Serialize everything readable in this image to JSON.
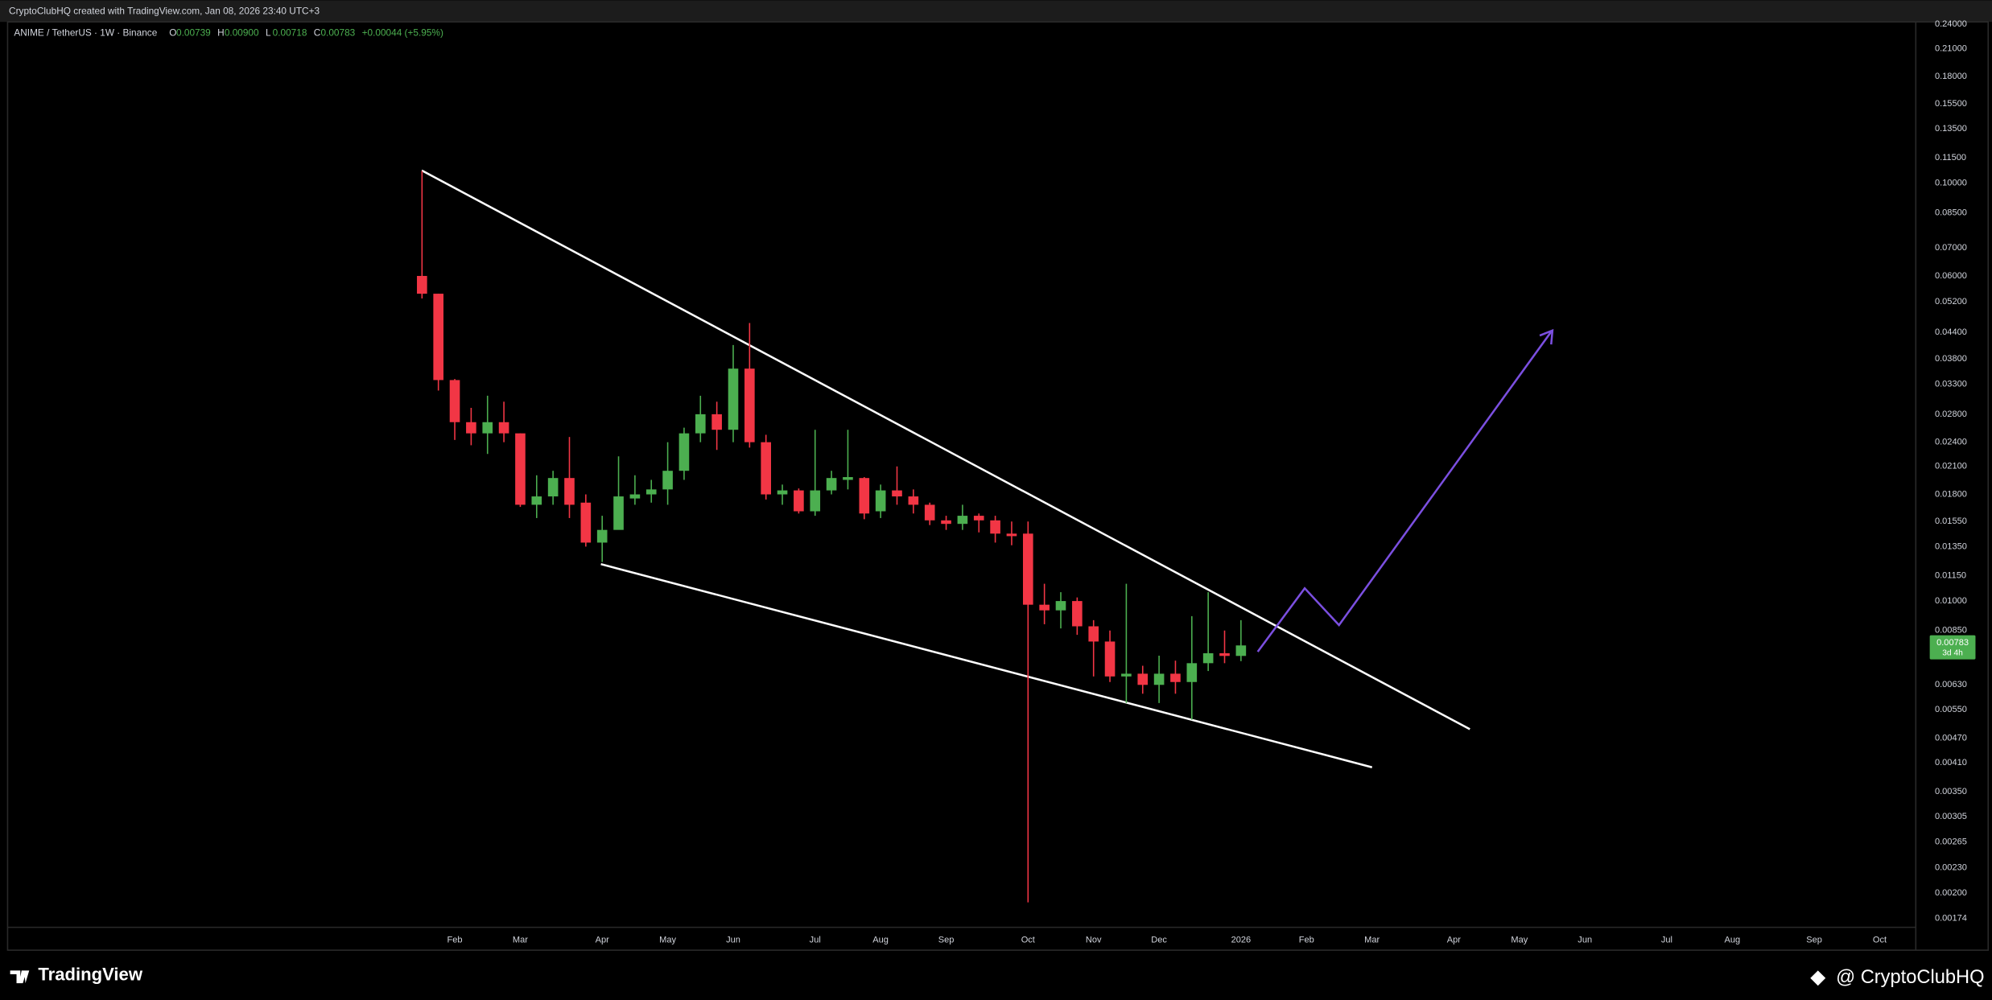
{
  "header": {
    "credit": "CryptoClubHQ created with TradingView.com, Jan 08, 2026 23:40 UTC+3"
  },
  "chart_data": {
    "type": "candlestick",
    "title": "ANIME / TetherUS · 1W · Binance",
    "legend": [
      {
        "key": "O",
        "text": "0.00739"
      },
      {
        "key": "H",
        "text": "0.00900"
      },
      {
        "key": "L",
        "text": "0.00718"
      },
      {
        "key": "C",
        "text": "0.00783"
      }
    ],
    "change": "+0.00044 (+5.95%)",
    "countdown": "3d 4h",
    "log_scale": true,
    "grid": false,
    "up_color": "#4caf50",
    "down_color": "#f23645",
    "x": [
      0,
      1,
      2,
      3,
      4,
      5,
      6,
      7,
      8,
      9,
      10,
      11,
      12,
      13,
      14,
      15,
      16,
      17,
      18,
      19,
      20,
      21,
      22,
      23,
      24,
      25,
      26,
      27,
      28,
      29,
      30,
      31,
      32,
      33,
      34,
      35,
      36,
      37,
      38,
      39,
      40,
      41,
      42,
      43,
      44,
      45,
      46,
      47,
      48,
      49,
      50
    ],
    "open": [
      0.06,
      0.0544,
      0.0338,
      0.0268,
      0.0252,
      0.0268,
      0.0252,
      0.017,
      0.0178,
      0.0197,
      0.0172,
      0.0138,
      0.0148,
      0.0176,
      0.018,
      0.0185,
      0.0205,
      0.0252,
      0.028,
      0.0257,
      0.036,
      0.024,
      0.018,
      0.0184,
      0.0164,
      0.0184,
      0.0195,
      0.0197,
      0.0164,
      0.0184,
      0.0178,
      0.017,
      0.0156,
      0.0153,
      0.016,
      0.0156,
      0.0145,
      0.0145,
      0.0098,
      0.0095,
      0.01,
      0.0087,
      0.008,
      0.0066,
      0.0067,
      0.0063,
      0.0067,
      0.0064,
      0.0071,
      0.0075,
      0.00739
    ],
    "high": [
      0.107,
      0.0544,
      0.034,
      0.029,
      0.031,
      0.03,
      0.0252,
      0.02,
      0.0205,
      0.0247,
      0.018,
      0.016,
      0.0222,
      0.02,
      0.0195,
      0.024,
      0.026,
      0.031,
      0.03,
      0.041,
      0.0463,
      0.025,
      0.019,
      0.0186,
      0.0257,
      0.0205,
      0.0257,
      0.0198,
      0.019,
      0.021,
      0.0185,
      0.0172,
      0.016,
      0.017,
      0.0162,
      0.016,
      0.0155,
      0.0155,
      0.011,
      0.0105,
      0.0102,
      0.009,
      0.0085,
      0.011,
      0.007,
      0.0074,
      0.0072,
      0.0092,
      0.0105,
      0.0085,
      0.009
    ],
    "low": [
      0.053,
      0.0319,
      0.0243,
      0.0236,
      0.0225,
      0.024,
      0.0168,
      0.0158,
      0.017,
      0.0158,
      0.0135,
      0.0124,
      0.015,
      0.017,
      0.0172,
      0.017,
      0.0195,
      0.024,
      0.023,
      0.024,
      0.0233,
      0.0175,
      0.017,
      0.0162,
      0.016,
      0.018,
      0.0185,
      0.0157,
      0.0158,
      0.017,
      0.0162,
      0.0152,
      0.0148,
      0.0148,
      0.0146,
      0.0138,
      0.0136,
      0.0019,
      0.0088,
      0.0086,
      0.0083,
      0.0066,
      0.0064,
      0.0057,
      0.006,
      0.0057,
      0.006,
      0.0052,
      0.0068,
      0.0071,
      0.00718
    ],
    "close": [
      0.0544,
      0.0338,
      0.0268,
      0.0252,
      0.0268,
      0.0252,
      0.017,
      0.0178,
      0.0197,
      0.017,
      0.0138,
      0.0148,
      0.0178,
      0.018,
      0.0185,
      0.0205,
      0.0252,
      0.028,
      0.0257,
      0.036,
      0.024,
      0.018,
      0.0184,
      0.0164,
      0.0184,
      0.0197,
      0.0198,
      0.0162,
      0.0184,
      0.0178,
      0.017,
      0.0156,
      0.0153,
      0.016,
      0.0156,
      0.0145,
      0.0143,
      0.0098,
      0.0095,
      0.01,
      0.0087,
      0.008,
      0.0066,
      0.0067,
      0.0063,
      0.0067,
      0.0064,
      0.0071,
      0.0075,
      0.00739,
      0.00783
    ],
    "xlim": [
      -25.3,
      91.2
    ],
    "xticks": [
      {
        "value": 2,
        "label": "Feb"
      },
      {
        "value": 6,
        "label": "Mar"
      },
      {
        "value": 11,
        "label": "Apr"
      },
      {
        "value": 15,
        "label": "May"
      },
      {
        "value": 19,
        "label": "Jun"
      },
      {
        "value": 24,
        "label": "Jul"
      },
      {
        "value": 28,
        "label": "Aug"
      },
      {
        "value": 32,
        "label": "Sep"
      },
      {
        "value": 37,
        "label": "Oct"
      },
      {
        "value": 41,
        "label": "Nov"
      },
      {
        "value": 45,
        "label": "Dec"
      },
      {
        "value": 50,
        "label": "2026"
      },
      {
        "value": 54,
        "label": "Feb"
      },
      {
        "value": 58,
        "label": "Mar"
      },
      {
        "value": 63,
        "label": "Apr"
      },
      {
        "value": 67,
        "label": "May"
      },
      {
        "value": 71,
        "label": "Jun"
      },
      {
        "value": 76,
        "label": "Jul"
      },
      {
        "value": 80,
        "label": "Aug"
      },
      {
        "value": 85,
        "label": "Sep"
      },
      {
        "value": 89,
        "label": "Oct"
      }
    ],
    "ylim": [
      0.00146,
      0.252
    ],
    "yticks": [
      {
        "value": 0.24,
        "label": "0.24000"
      },
      {
        "value": 0.21,
        "label": "0.21000"
      },
      {
        "value": 0.18,
        "label": "0.18000"
      },
      {
        "value": 0.155,
        "label": "0.15500"
      },
      {
        "value": 0.135,
        "label": "0.13500"
      },
      {
        "value": 0.115,
        "label": "0.11500"
      },
      {
        "value": 0.1,
        "label": "0.10000"
      },
      {
        "value": 0.085,
        "label": "0.08500"
      },
      {
        "value": 0.07,
        "label": "0.07000"
      },
      {
        "value": 0.06,
        "label": "0.06000"
      },
      {
        "value": 0.052,
        "label": "0.05200"
      },
      {
        "value": 0.044,
        "label": "0.04400"
      },
      {
        "value": 0.038,
        "label": "0.03800"
      },
      {
        "value": 0.033,
        "label": "0.03300"
      },
      {
        "value": 0.028,
        "label": "0.02800"
      },
      {
        "value": 0.024,
        "label": "0.02400"
      },
      {
        "value": 0.021,
        "label": "0.02100"
      },
      {
        "value": 0.018,
        "label": "0.01800"
      },
      {
        "value": 0.0155,
        "label": "0.01550"
      },
      {
        "value": 0.0135,
        "label": "0.01350"
      },
      {
        "value": 0.0115,
        "label": "0.01150"
      },
      {
        "value": 0.01,
        "label": "0.01000"
      },
      {
        "value": 0.0085,
        "label": "0.00850"
      },
      {
        "value": 0.0063,
        "label": "0.00630"
      },
      {
        "value": 0.0055,
        "label": "0.00550"
      },
      {
        "value": 0.0047,
        "label": "0.00470"
      },
      {
        "value": 0.0041,
        "label": "0.00410"
      },
      {
        "value": 0.0035,
        "label": "0.00350"
      },
      {
        "value": 0.00305,
        "label": "0.00305"
      },
      {
        "value": 0.00265,
        "label": "0.00265"
      },
      {
        "value": 0.0023,
        "label": "0.00230"
      },
      {
        "value": 0.002,
        "label": "0.00200"
      },
      {
        "value": 0.00174,
        "label": "0.00174"
      }
    ]
  },
  "footer": {
    "brand": "TradingView",
    "author": "@ CryptoClubHQ"
  }
}
